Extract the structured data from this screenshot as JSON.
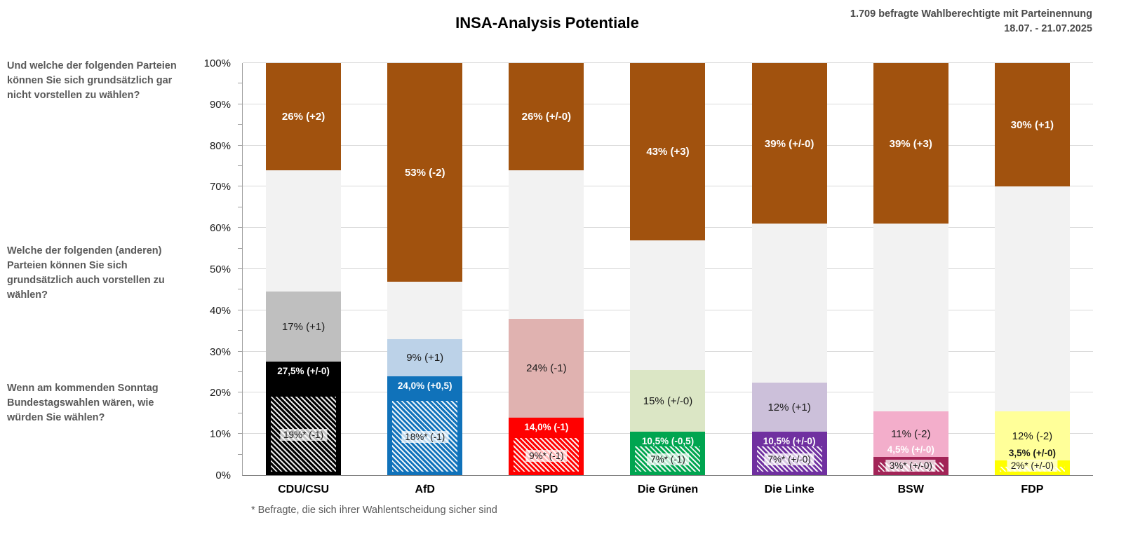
{
  "title": "INSA-Analysis Potentiale",
  "header_note": {
    "line1": "1.709 befragte Wahlberechtigte mit Parteinennung",
    "line2": "18.07. - 21.07.2025"
  },
  "questions": {
    "reject": "Und welche der folgenden Parteien können Sie sich grundsätzlich gar nicht vorstellen zu wählen?",
    "potential": "Welche der folgenden (anderen) Parteien können Sie sich grundsätzlich auch vorstellen zu wählen?",
    "vote": "Wenn am kommenden Sonntag Bundestagswahlen wären, wie würden Sie wählen?"
  },
  "footnote": "* Befragte, die sich ihrer Wahlentscheidung sicher sind",
  "colors": {
    "reject_brown": "#A1520E",
    "rest_gray": "#F2F2F2",
    "grid": "#D9D9D9",
    "axis": "#9E9E9E",
    "text_gray": "#595959"
  },
  "chart_data": {
    "type": "bar",
    "stacked": true,
    "title": "INSA-Analysis Potentiale",
    "xlabel": "",
    "ylabel": "",
    "ylim": [
      0,
      100
    ],
    "grid": true,
    "yticks": [
      "0%",
      "10%",
      "20%",
      "30%",
      "40%",
      "50%",
      "60%",
      "70%",
      "80%",
      "90%",
      "100%"
    ],
    "categories": [
      "CDU/CSU",
      "AfD",
      "SPD",
      "Die Grünen",
      "Die Linke",
      "BSW",
      "FDP"
    ],
    "segments_bottom_to_top": [
      "vote",
      "sure (hatched subset of vote)",
      "potential",
      "rest",
      "reject"
    ],
    "parties": [
      {
        "name": "CDU/CSU",
        "color": "#000000",
        "tint": "#BFBFBF",
        "label_color": "#FFFFFF",
        "vote": 27.5,
        "vote_label": "27,5% (+/-0)",
        "sure": 19,
        "sure_label": "19%* (-1)",
        "potential": 17,
        "potential_label": "17% (+1)",
        "reject": 26,
        "reject_label": "26% (+2)"
      },
      {
        "name": "AfD",
        "color": "#1072BA",
        "tint": "#BCD2E8",
        "label_color": "#FFFFFF",
        "vote": 24,
        "vote_label": "24,0% (+0,5)",
        "sure": 18,
        "sure_label": "18%* (-1)",
        "potential": 9,
        "potential_label": "9% (+1)",
        "reject": 53,
        "reject_label": "53% (-2)"
      },
      {
        "name": "SPD",
        "color": "#FF0000",
        "tint": "#E0B2B0",
        "label_color": "#FFFFFF",
        "vote": 14,
        "vote_label": "14,0% (-1)",
        "sure": 9,
        "sure_label": "9%* (-1)",
        "potential": 24,
        "potential_label": "24% (-1)",
        "reject": 26,
        "reject_label": "26% (+/-0)"
      },
      {
        "name": "Die Grünen",
        "color": "#00A550",
        "tint": "#DBE6C5",
        "label_color": "#FFFFFF",
        "vote": 10.5,
        "vote_label": "10,5% (-0,5)",
        "sure": 7,
        "sure_label": "7%* (-1)",
        "potential": 15,
        "potential_label": "15% (+/-0)",
        "reject": 43,
        "reject_label": "43% (+3)"
      },
      {
        "name": "Die Linke",
        "color": "#7030A0",
        "tint": "#CCC0DA",
        "label_color": "#FFFFFF",
        "vote": 10.5,
        "vote_label": "10,5% (+/-0)",
        "sure": 7,
        "sure_label": "7%* (+/-0)",
        "potential": 12,
        "potential_label": "12% (+1)",
        "reject": 39,
        "reject_label": "39% (+/-0)"
      },
      {
        "name": "BSW",
        "color": "#A22457",
        "tint": "#F3AECB",
        "label_color": "#FFFFFF",
        "vote": 4.5,
        "vote_label": "4,5% (+/-0)",
        "sure": 3,
        "sure_label": "3%* (+/-0)",
        "potential": 11,
        "potential_label": "11% (-2)",
        "reject": 39,
        "reject_label": "39% (+3)"
      },
      {
        "name": "FDP",
        "color": "#FFFF00",
        "tint": "#FFFF99",
        "label_color": "#1A1A1A",
        "vote": 3.5,
        "vote_label": "3,5% (+/-0)",
        "sure": 2,
        "sure_label": "2%* (+/-0)",
        "potential": 12,
        "potential_label": "12% (-2)",
        "reject": 30,
        "reject_label": "30% (+1)"
      }
    ]
  }
}
